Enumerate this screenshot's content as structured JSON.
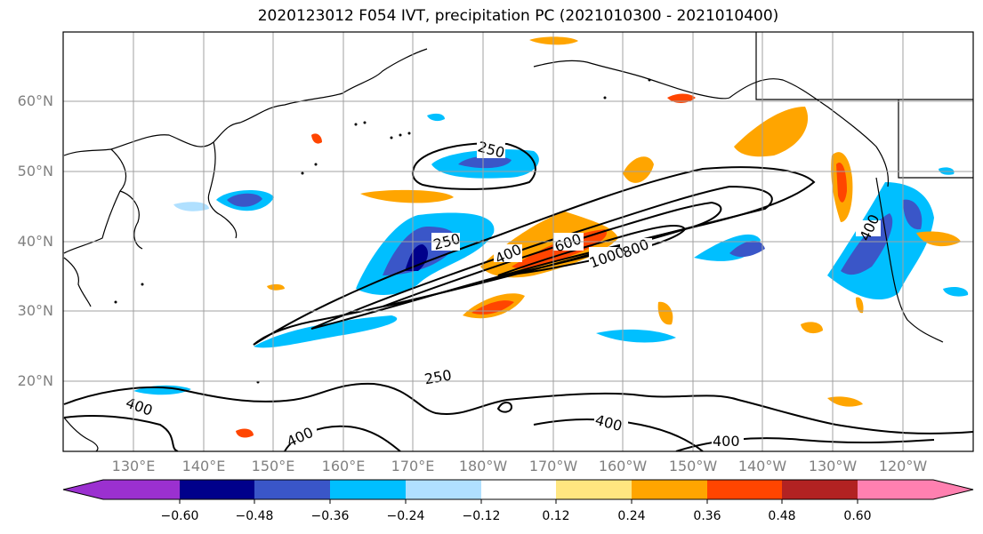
{
  "title": "2020123012 F054 IVT, precipitation PC (2021010300 - 2021010400)",
  "map": {
    "lat_labels": [
      "60°N",
      "50°N",
      "40°N",
      "30°N",
      "20°N"
    ],
    "lon_labels": [
      "130°E",
      "140°E",
      "150°E",
      "160°E",
      "170°E",
      "180°W",
      "170°W",
      "160°W",
      "150°W",
      "140°W",
      "130°W",
      "120°W"
    ],
    "contour_labels": [
      "250",
      "250",
      "400",
      "600",
      "1000",
      "800",
      "250",
      "400",
      "400",
      "400",
      "400",
      "400"
    ]
  },
  "colorbar": {
    "tick_labels": [
      "−0.60",
      "−0.48",
      "−0.36",
      "−0.24",
      "−0.12",
      "0.12",
      "0.24",
      "0.36",
      "0.48",
      "0.60"
    ],
    "colors": [
      "#9b30d0",
      "#00008b",
      "#3a56c8",
      "#00bfff",
      "#b0e0ff",
      "#ffffff",
      "#ffe680",
      "#ffa500",
      "#ff4500",
      "#b22222",
      "#ff80b0"
    ]
  }
}
